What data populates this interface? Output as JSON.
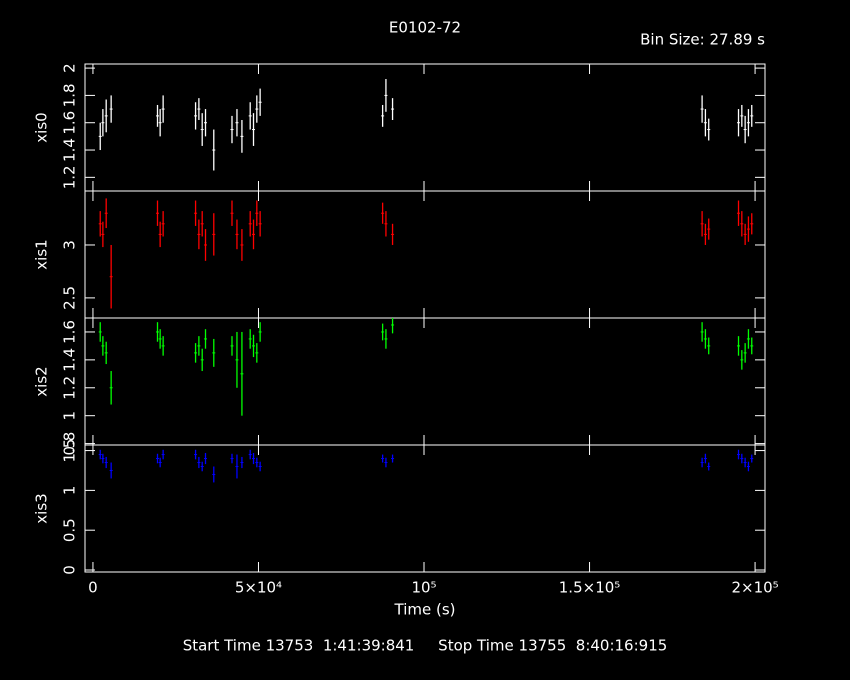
{
  "chart_data": {
    "type": "scatter",
    "title": "E0102-72",
    "subtitle": "Bin Size: 27.89 s",
    "xlabel": "Time (s)",
    "footer": "Start Time 13753  1:41:39:841     Stop Time 13755  8:40:16:915",
    "x": [
      2200,
      3000,
      4000,
      5500,
      19500,
      20300,
      21200,
      31000,
      32000,
      33000,
      34000,
      36500,
      42000,
      43500,
      45000,
      47500,
      48500,
      49500,
      50500,
      87500,
      88500,
      90500,
      184000,
      185000,
      186000,
      195000,
      196000,
      197000,
      198000,
      199000
    ],
    "xlim": [
      -2400,
      203000
    ],
    "xticks": [
      0,
      {
        "value": 50000,
        "label": "5×10⁴"
      },
      {
        "value": 100000,
        "label": "10⁵"
      },
      {
        "value": 150000,
        "label": "1.5×10⁵"
      },
      {
        "value": 200000,
        "label": "2×10⁵"
      }
    ],
    "panels": [
      {
        "ylabel": "xis0",
        "color": "#ffffff",
        "ylim": [
          1.1,
          2.03
        ],
        "yticks": [
          1.2,
          1.4,
          1.6,
          1.8,
          2
        ],
        "values": [
          1.5,
          1.6,
          1.65,
          1.7,
          1.65,
          1.6,
          1.7,
          1.65,
          1.7,
          1.55,
          1.6,
          1.4,
          1.55,
          1.6,
          1.5,
          1.65,
          1.55,
          1.7,
          1.75,
          1.65,
          1.8,
          1.7,
          1.7,
          1.6,
          1.55,
          1.6,
          1.65,
          1.55,
          1.6,
          1.65
        ],
        "errors": [
          0.1,
          0.1,
          0.12,
          0.1,
          0.08,
          0.1,
          0.1,
          0.1,
          0.08,
          0.12,
          0.1,
          0.15,
          0.1,
          0.1,
          0.12,
          0.1,
          0.12,
          0.1,
          0.1,
          0.08,
          0.12,
          0.08,
          0.1,
          0.1,
          0.08,
          0.1,
          0.08,
          0.1,
          0.1,
          0.08
        ]
      },
      {
        "ylabel": "xis1",
        "color": "#ff0000",
        "ylim": [
          2.31,
          3.51
        ],
        "yticks": [
          2.5,
          3
        ],
        "values": [
          3.2,
          3.1,
          3.3,
          2.7,
          3.3,
          3.1,
          3.2,
          3.3,
          3.1,
          3.2,
          3.0,
          3.1,
          3.3,
          3.1,
          3.0,
          3.2,
          3.1,
          3.3,
          3.2,
          3.3,
          3.2,
          3.1,
          3.2,
          3.1,
          3.15,
          3.3,
          3.2,
          3.1,
          3.15,
          3.2
        ],
        "errors": [
          0.12,
          0.12,
          0.14,
          0.3,
          0.12,
          0.12,
          0.12,
          0.12,
          0.14,
          0.12,
          0.15,
          0.2,
          0.12,
          0.14,
          0.15,
          0.12,
          0.14,
          0.12,
          0.12,
          0.1,
          0.12,
          0.1,
          0.12,
          0.1,
          0.1,
          0.12,
          0.12,
          0.1,
          0.12,
          0.1
        ]
      },
      {
        "ylabel": "xis2",
        "color": "#00ff00",
        "ylim": [
          0.79,
          1.7
        ],
        "yticks": [
          0.8,
          1,
          1.2,
          1.4,
          1.6
        ],
        "values": [
          1.6,
          1.5,
          1.45,
          1.2,
          1.6,
          1.55,
          1.5,
          1.45,
          1.5,
          1.4,
          1.55,
          1.45,
          1.5,
          1.4,
          1.3,
          1.55,
          1.5,
          1.45,
          1.6,
          1.6,
          1.55,
          1.65,
          1.6,
          1.55,
          1.5,
          1.5,
          1.4,
          1.45,
          1.55,
          1.5
        ],
        "errors": [
          0.07,
          0.07,
          0.08,
          0.12,
          0.07,
          0.07,
          0.07,
          0.07,
          0.07,
          0.08,
          0.07,
          0.1,
          0.07,
          0.2,
          0.3,
          0.07,
          0.08,
          0.07,
          0.07,
          0.06,
          0.07,
          0.06,
          0.07,
          0.07,
          0.06,
          0.07,
          0.07,
          0.07,
          0.07,
          0.06
        ]
      },
      {
        "ylabel": "xis3",
        "color": "#0000ff",
        "ylim": [
          -0.025,
          1.57
        ],
        "yticks": [
          0,
          0.5,
          1,
          1.5
        ],
        "values": [
          1.45,
          1.4,
          1.35,
          1.25,
          1.4,
          1.35,
          1.45,
          1.45,
          1.35,
          1.3,
          1.4,
          1.2,
          1.4,
          1.3,
          1.35,
          1.45,
          1.4,
          1.35,
          1.3,
          1.4,
          1.35,
          1.4,
          1.35,
          1.4,
          1.3,
          1.45,
          1.4,
          1.35,
          1.3,
          1.4
        ],
        "errors": [
          0.06,
          0.06,
          0.07,
          0.1,
          0.06,
          0.06,
          0.06,
          0.06,
          0.07,
          0.06,
          0.07,
          0.1,
          0.06,
          0.15,
          0.07,
          0.06,
          0.07,
          0.06,
          0.06,
          0.05,
          0.06,
          0.05,
          0.06,
          0.06,
          0.05,
          0.06,
          0.06,
          0.06,
          0.06,
          0.05
        ]
      }
    ]
  }
}
